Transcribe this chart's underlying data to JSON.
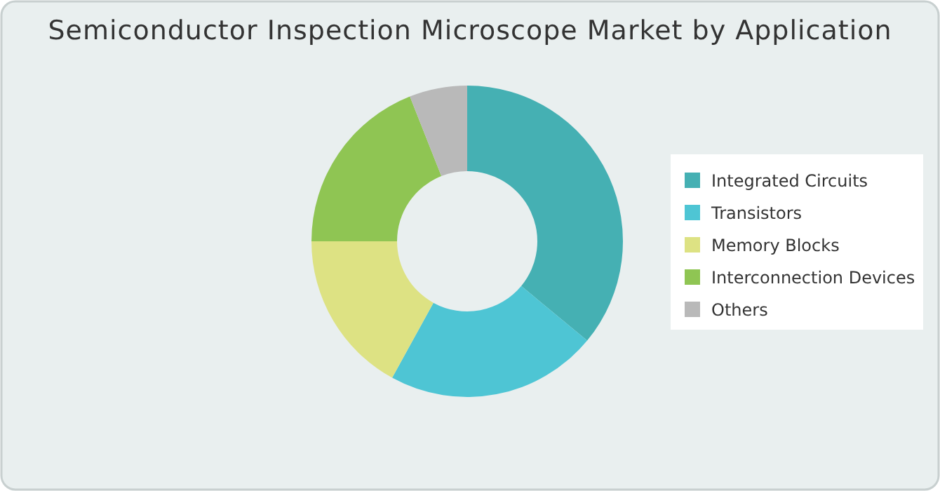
{
  "chart_data": {
    "type": "donut",
    "title": "Semiconductor Inspection Microscope Market by Application",
    "categories": [
      "Integrated Circuits",
      "Transistors",
      "Memory Blocks",
      "Interconnection Devices",
      "Others"
    ],
    "values": [
      36,
      22,
      17,
      19,
      6
    ],
    "colors": [
      "#45b0b3",
      "#4ec5d4",
      "#dde283",
      "#8fc553",
      "#b9b9b9"
    ],
    "legend": "right"
  }
}
